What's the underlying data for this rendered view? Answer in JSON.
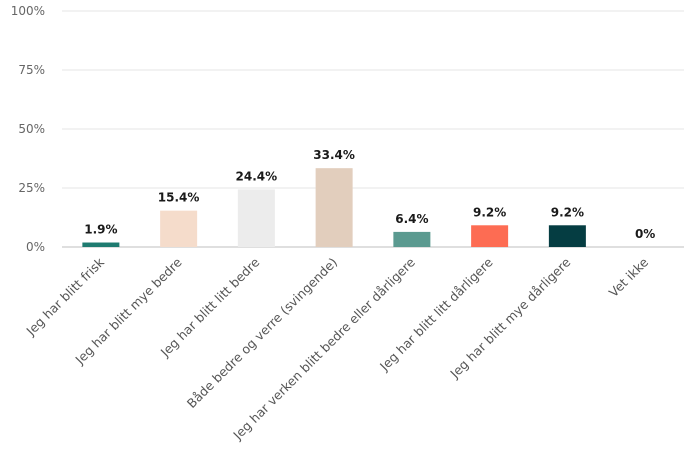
{
  "chart_data": {
    "type": "bar",
    "title": "",
    "xlabel": "",
    "ylabel": "",
    "categories": [
      "Jeg har blitt frisk",
      "Jeg har blitt mye bedre",
      "Jeg har blitt litt bedre",
      "Både bedre og verre (svingende)",
      "Jeg har verken blitt bedre eller dårligere",
      "Jeg har blitt litt dårligere",
      "Jeg har blitt mye dårligere",
      "Vet ikke"
    ],
    "values": [
      1.9,
      15.4,
      24.4,
      33.4,
      6.4,
      9.2,
      9.2,
      0
    ],
    "data_labels": [
      "1.9%",
      "15.4%",
      "24.4%",
      "33.4%",
      "6.4%",
      "9.2%",
      "9.2%",
      "0%"
    ],
    "colors": [
      "#1e7b70",
      "#f5dccb",
      "#ececec",
      "#e2cebd",
      "#5b9a90",
      "#fd6c53",
      "#053d42",
      "#cccccc"
    ],
    "ylim": [
      0,
      100
    ],
    "yticks": [
      0,
      25,
      50,
      75,
      100
    ],
    "ytick_labels": [
      "0%",
      "25%",
      "50%",
      "75%",
      "100%"
    ],
    "grid": true,
    "legend": "none"
  }
}
